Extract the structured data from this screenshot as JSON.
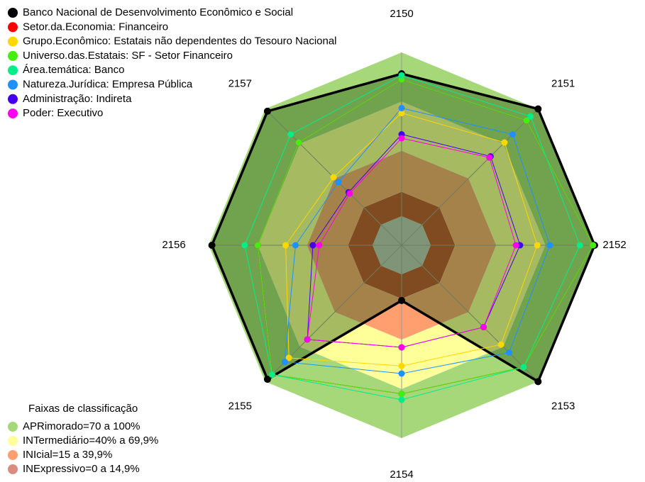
{
  "chart_data": {
    "type": "radar",
    "categories": [
      "2150",
      "2151",
      "2152",
      "2153",
      "2154",
      "2155",
      "2156",
      "2157"
    ],
    "ylim": [
      0,
      100
    ],
    "series": [
      {
        "name": "Banco Nacional de Desenvolvimento Econômico e Social",
        "color": "#000000",
        "values": [
          87,
          100,
          100,
          100,
          16,
          98,
          98,
          98
        ]
      },
      {
        "name": "Setor.da.Economia: Financeiro",
        "color": "#ff0000",
        "values": [
          83.5,
          90,
          99,
          87.5,
          73,
          94,
          70,
          71
        ]
      },
      {
        "name": "Grupo.Econômico: Estatais não dependentes do Tesouro Nacional",
        "color": "#ffd700",
        "values": [
          63,
          71,
          65,
          68,
          56,
          79.5,
          53,
          41
        ]
      },
      {
        "name": "Universo.das.Estatais: SF - Setor Financeiro",
        "color": "#44ee11",
        "values": [
          83.5,
          90,
          99,
          87.5,
          73,
          94,
          70,
          71
        ]
      },
      {
        "name": "Área.temática: Banco",
        "color": "#00ee88",
        "values": [
          86,
          93.5,
          91,
          87.5,
          76.6,
          94,
          78,
          78
        ]
      },
      {
        "name": "Natureza.Jurídica: Empresa Pública",
        "color": "#1e90ff",
        "values": [
          66,
          78,
          72.7,
          75,
          60.6,
          83,
          47,
          36.8
        ]
      },
      {
        "name": "Administração: Indireta",
        "color": "#4400ee",
        "values": [
          50,
          59,
          54.5,
          53,
          44.6,
          63.6,
          36.4,
          28
        ]
      },
      {
        "name": "Poder: Executivo",
        "color": "#ff00ee",
        "values": [
          47.6,
          58,
          52,
          53,
          44.6,
          63.6,
          32.5,
          27
        ]
      }
    ],
    "band_legend_title": "Faixas de classificação",
    "bands": [
      {
        "label": "APRimorado=70 a 100%",
        "color": "#a6d87a",
        "from": 70,
        "to": 100
      },
      {
        "label": "INTermediário=40% a 69,9%",
        "color": "#ffff99",
        "from": 40,
        "to": 69.9
      },
      {
        "label": "INIcial=15 a 39,9%",
        "color": "#ff9f70",
        "from": 15,
        "to": 39.9
      },
      {
        "label": "INExpressivo=0 a 14,9%",
        "color": "#c0402a",
        "from": 0,
        "to": 14.9
      }
    ]
  }
}
